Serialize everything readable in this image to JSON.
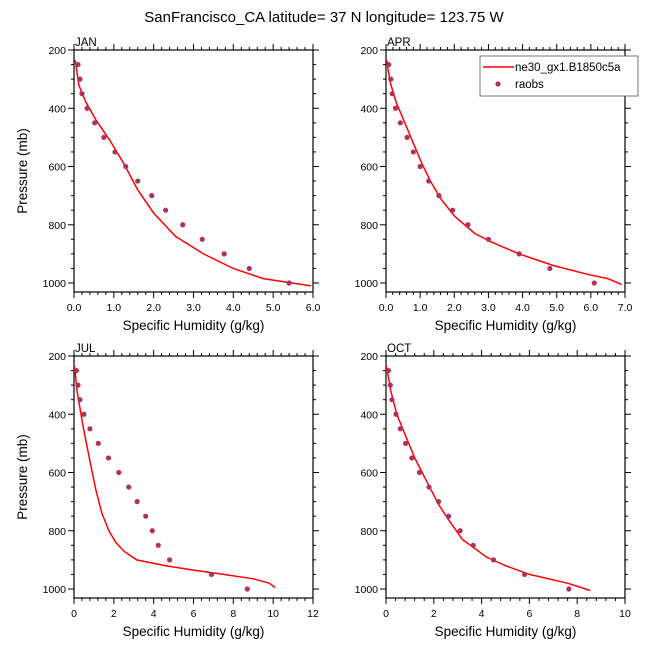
{
  "figure_title": "SanFrancisco_CA  latitude= 37 N longitude= 123.75 W",
  "colors": {
    "model_line": "#ff0000",
    "obs_marker": "#b03060"
  },
  "legend": {
    "entries": [
      {
        "label": "ne30_gx1.B1850c5a",
        "kind": "line"
      },
      {
        "label": "raobs",
        "kind": "marker"
      }
    ],
    "placement": "top-right of APR panel"
  },
  "chart_data": [
    {
      "type": "line",
      "panel": "JAN",
      "title": "JAN",
      "xlabel": "Specific Humidity (g/kg)",
      "ylabel": "Pressure (mb)",
      "xlim": [
        0,
        6
      ],
      "ylim": [
        1030,
        200
      ],
      "y_reversed": true,
      "xticks": [
        0,
        1,
        2,
        3,
        4,
        5,
        6
      ],
      "xtick_labels": [
        "0.0",
        "1.0",
        "2.0",
        "3.0",
        "4.0",
        "5.0",
        "6.0"
      ],
      "yticks": [
        200,
        400,
        600,
        800,
        1000
      ],
      "ytick_labels": [
        "200",
        "400",
        "600",
        "800",
        "1000"
      ],
      "series": [
        {
          "name": "ne30_gx1.B1850c5a",
          "kind": "line",
          "x": [
            0.03,
            0.12,
            0.3,
            0.55,
            0.9,
            1.25,
            1.6,
            2.0,
            2.55,
            3.25,
            4.0,
            4.75,
            5.95
          ],
          "y": [
            235,
            320,
            380,
            440,
            510,
            590,
            680,
            760,
            840,
            900,
            950,
            985,
            1010
          ]
        },
        {
          "name": "raobs",
          "kind": "scatter",
          "x": [
            0.1,
            0.15,
            0.2,
            0.33,
            0.52,
            0.75,
            1.03,
            1.3,
            1.6,
            1.95,
            2.3,
            2.73,
            3.22,
            3.77,
            4.4,
            5.4
          ],
          "y": [
            250,
            300,
            350,
            400,
            450,
            500,
            550,
            600,
            650,
            700,
            750,
            800,
            850,
            900,
            950,
            1000
          ]
        }
      ]
    },
    {
      "type": "line",
      "panel": "APR",
      "title": "APR",
      "xlabel": "Specific Humidity (g/kg)",
      "ylabel": "",
      "xlim": [
        0,
        7
      ],
      "ylim": [
        1030,
        200
      ],
      "y_reversed": true,
      "xticks": [
        0,
        1,
        2,
        3,
        4,
        5,
        6,
        7
      ],
      "xtick_labels": [
        "0.0",
        "1.0",
        "2.0",
        "3.0",
        "4.0",
        "5.0",
        "6.0",
        "7.0"
      ],
      "yticks": [
        200,
        400,
        600,
        800,
        1000
      ],
      "ytick_labels": [
        "200",
        "400",
        "600",
        "800",
        "1000"
      ],
      "series": [
        {
          "name": "ne30_gx1.B1850c5a",
          "kind": "line",
          "x": [
            0.02,
            0.12,
            0.3,
            0.55,
            0.8,
            1.05,
            1.3,
            1.6,
            2.0,
            2.6,
            3.1,
            3.9,
            4.9,
            5.9,
            6.5,
            6.9
          ],
          "y": [
            235,
            310,
            380,
            450,
            520,
            590,
            650,
            710,
            770,
            830,
            860,
            900,
            940,
            970,
            985,
            1005
          ]
        },
        {
          "name": "raobs",
          "kind": "scatter",
          "x": [
            0.08,
            0.14,
            0.18,
            0.28,
            0.42,
            0.62,
            0.8,
            1.0,
            1.25,
            1.55,
            1.95,
            2.4,
            3.0,
            3.9,
            4.8,
            6.1
          ],
          "y": [
            250,
            300,
            350,
            400,
            450,
            500,
            550,
            600,
            650,
            700,
            750,
            800,
            850,
            900,
            950,
            1000
          ]
        }
      ]
    },
    {
      "type": "line",
      "panel": "JUL",
      "title": "JUL",
      "xlabel": "Specific Humidity (g/kg)",
      "ylabel": "Pressure (mb)",
      "xlim": [
        0,
        12
      ],
      "ylim": [
        1030,
        200
      ],
      "y_reversed": true,
      "xticks": [
        0,
        2,
        4,
        6,
        8,
        10,
        12
      ],
      "xtick_labels": [
        "0",
        "2",
        "4",
        "6",
        "8",
        "10",
        "12"
      ],
      "yticks": [
        200,
        400,
        600,
        800,
        1000
      ],
      "ytick_labels": [
        "200",
        "400",
        "600",
        "800",
        "1000"
      ],
      "series": [
        {
          "name": "ne30_gx1.B1850c5a",
          "kind": "line",
          "x": [
            0.03,
            0.15,
            0.45,
            0.8,
            1.1,
            1.4,
            1.75,
            2.1,
            2.5,
            3.15,
            4.6,
            6.0,
            7.5,
            9.0,
            9.8,
            10.1
          ],
          "y": [
            235,
            320,
            440,
            560,
            660,
            740,
            800,
            840,
            870,
            900,
            920,
            935,
            950,
            965,
            980,
            995
          ]
        },
        {
          "name": "raobs",
          "kind": "scatter",
          "x": [
            0.12,
            0.2,
            0.3,
            0.5,
            0.8,
            1.22,
            1.73,
            2.25,
            2.75,
            3.17,
            3.6,
            3.93,
            4.23,
            4.8,
            6.9,
            8.7
          ],
          "y": [
            250,
            300,
            350,
            400,
            450,
            500,
            550,
            600,
            650,
            700,
            750,
            800,
            850,
            900,
            950,
            1000
          ]
        }
      ]
    },
    {
      "type": "line",
      "panel": "OCT",
      "title": "OCT",
      "xlabel": "Specific Humidity (g/kg)",
      "ylabel": "",
      "xlim": [
        0,
        10
      ],
      "ylim": [
        1030,
        200
      ],
      "y_reversed": true,
      "xticks": [
        0,
        2,
        4,
        6,
        8,
        10
      ],
      "xtick_labels": [
        "0",
        "2",
        "4",
        "6",
        "8",
        "10"
      ],
      "yticks": [
        200,
        400,
        600,
        800,
        1000
      ],
      "ytick_labels": [
        "200",
        "400",
        "600",
        "800",
        "1000"
      ],
      "series": [
        {
          "name": "ne30_gx1.B1850c5a",
          "kind": "line",
          "x": [
            0.02,
            0.2,
            0.45,
            0.8,
            1.2,
            1.7,
            2.2,
            2.6,
            3.2,
            4.2,
            5.0,
            6.0,
            7.6,
            8.55
          ],
          "y": [
            235,
            320,
            400,
            470,
            550,
            630,
            710,
            760,
            830,
            890,
            920,
            950,
            980,
            1005
          ]
        },
        {
          "name": "raobs",
          "kind": "scatter",
          "x": [
            0.1,
            0.18,
            0.25,
            0.42,
            0.6,
            0.82,
            1.08,
            1.4,
            1.8,
            2.2,
            2.62,
            3.1,
            3.65,
            4.5,
            5.8,
            7.65
          ],
          "y": [
            250,
            300,
            350,
            400,
            450,
            500,
            550,
            600,
            650,
            700,
            750,
            800,
            850,
            900,
            950,
            1000
          ]
        }
      ]
    }
  ]
}
